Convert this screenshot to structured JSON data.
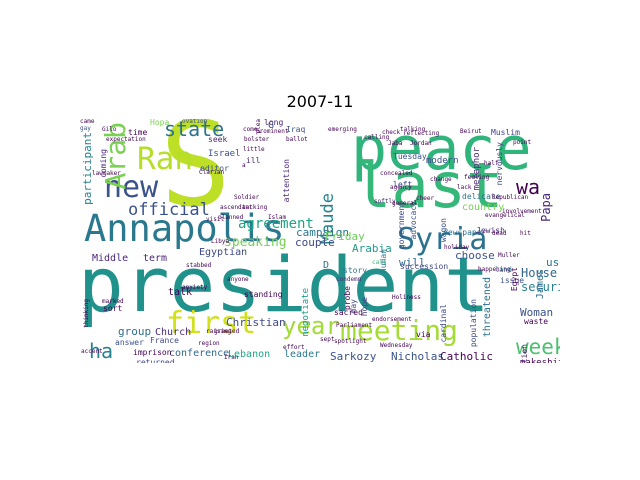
{
  "title": "2007-11",
  "words": [
    {
      "text": "president",
      "color": "#21918c"
    },
    {
      "text": "S",
      "color": "#bddf26"
    },
    {
      "text": "peace",
      "color": "#2fb47c"
    },
    {
      "text": "last",
      "color": "#35b779"
    },
    {
      "text": "Annapolis",
      "color": "#2a788e"
    },
    {
      "text": "new",
      "color": "#3b528b"
    },
    {
      "text": "Ran",
      "color": "#b5de2b"
    },
    {
      "text": "Arab",
      "color": "#7ad151"
    },
    {
      "text": "state",
      "color": "#2c728e"
    },
    {
      "text": "official",
      "color": "#3b528b"
    },
    {
      "text": "Syria",
      "color": "#2c728e"
    },
    {
      "text": "first",
      "color": "#d0e11c"
    },
    {
      "text": "year",
      "color": "#a2da37"
    },
    {
      "text": "meeting",
      "color": "#a5db36"
    },
    {
      "text": "week",
      "color": "#4ac16d"
    },
    {
      "text": "ha",
      "color": "#26828e"
    },
    {
      "text": "wa",
      "color": "#440154"
    },
    {
      "text": "Maude",
      "color": "#25858e"
    },
    {
      "text": "agreement",
      "color": "#20a486"
    },
    {
      "text": "House",
      "color": "#31688e"
    },
    {
      "text": "Papa",
      "color": "#482878"
    },
    {
      "text": "security",
      "color": "#26828e"
    },
    {
      "text": "speaking",
      "color": "#75d054"
    },
    {
      "text": "campaign",
      "color": "#2a788e"
    },
    {
      "text": "couple",
      "color": "#3e4989"
    },
    {
      "text": "Friday",
      "color": "#6ccd5a"
    },
    {
      "text": "Arabia",
      "color": "#1f9e89"
    },
    {
      "text": "will",
      "color": "#31688e"
    },
    {
      "text": "used",
      "color": "#2c728e"
    },
    {
      "text": "choose",
      "color": "#3b528b"
    },
    {
      "text": "Middle",
      "color": "#482878"
    },
    {
      "text": "term",
      "color": "#482878"
    },
    {
      "text": "group",
      "color": "#2d708e"
    },
    {
      "text": "talk",
      "color": "#440154"
    },
    {
      "text": "Egyptian",
      "color": "#3e4989"
    },
    {
      "text": "Christian",
      "color": "#3e4989"
    },
    {
      "text": "Church",
      "color": "#482878"
    },
    {
      "text": "conference",
      "color": "#31688e"
    },
    {
      "text": "Lebanon",
      "color": "#20a486"
    },
    {
      "text": "leader",
      "color": "#2a788e"
    },
    {
      "text": "Sarkozy",
      "color": "#3b528b"
    },
    {
      "text": "Nicholas",
      "color": "#3b528b"
    },
    {
      "text": "Catholic",
      "color": "#440154"
    },
    {
      "text": "Woman",
      "color": "#3b528b"
    },
    {
      "text": "makeshift",
      "color": "#440154"
    },
    {
      "text": "negotiate",
      "color": "#1f9e89"
    },
    {
      "text": "Israel",
      "color": "#3b528b"
    },
    {
      "text": "editor",
      "color": "#3b528b"
    },
    {
      "text": "seek",
      "color": "#481f70"
    },
    {
      "text": "participant",
      "color": "#26828e"
    },
    {
      "text": "metaphor",
      "color": "#482878"
    },
    {
      "text": "modern",
      "color": "#3b528b"
    },
    {
      "text": "country",
      "color": "#75d054"
    },
    {
      "text": "delicate",
      "color": "#2d708e"
    },
    {
      "text": "newspaper",
      "color": "#2c728e"
    },
    {
      "text": "Jewish",
      "color": "#482878"
    },
    {
      "text": "left",
      "color": "#414487"
    },
    {
      "text": "human",
      "color": "#2a788e"
    },
    {
      "text": "issue",
      "color": "#3b528b"
    },
    {
      "text": "succession",
      "color": "#3e4989"
    },
    {
      "text": "answer",
      "color": "#3b528b"
    },
    {
      "text": "imprison",
      "color": "#440154"
    },
    {
      "text": "returned",
      "color": "#414487"
    },
    {
      "text": "attention",
      "color": "#482878"
    },
    {
      "text": "government",
      "color": "#3e4989"
    },
    {
      "text": "advocacy",
      "color": "#3b528b"
    },
    {
      "text": "wagon",
      "color": "#3b528b"
    },
    {
      "text": "declaration",
      "color": "#481f70"
    },
    {
      "text": "James",
      "color": "#2d708e"
    },
    {
      "text": "threatened",
      "color": "#2d708e"
    },
    {
      "text": "Egypt",
      "color": "#440154"
    },
    {
      "text": "Tuesday",
      "color": "#3b528b"
    },
    {
      "text": "long",
      "color": "#481f70"
    },
    {
      "text": "ill",
      "color": "#482878"
    },
    {
      "text": "coming",
      "color": "#482878"
    },
    {
      "text": "time",
      "color": "#440154"
    },
    {
      "text": "Hopa",
      "color": "#7ad151"
    },
    {
      "text": "story",
      "color": "#2a788e"
    },
    {
      "text": "sort",
      "color": "#440154"
    },
    {
      "text": "France",
      "color": "#3e4989"
    },
    {
      "text": "cardinal",
      "color": "#3e4989"
    },
    {
      "text": "Muslim",
      "color": "#414487"
    },
    {
      "text": "nervously",
      "color": "#414487"
    },
    {
      "text": "standing",
      "color": "#440154"
    },
    {
      "text": "waste",
      "color": "#440154"
    },
    {
      "text": "population",
      "color": "#3e4989"
    },
    {
      "text": "via",
      "color": "#440154"
    },
    {
      "text": "may",
      "color": "#3e4989"
    },
    {
      "text": "Iraq",
      "color": "#3b528b"
    },
    {
      "text": "hope",
      "color": "#414487"
    },
    {
      "text": "probe",
      "color": "#440154"
    },
    {
      "text": "sacred",
      "color": "#440154"
    },
    {
      "text": "D",
      "color": "#2d708e"
    },
    {
      "text": "G",
      "color": "#3b528b"
    },
    {
      "text": "change",
      "color": "#440154"
    },
    {
      "text": "land",
      "color": "#2c728e"
    },
    {
      "text": "call",
      "color": "#35b779"
    },
    {
      "text": "thinking",
      "color": "#440154"
    },
    {
      "text": "condemn",
      "color": "#482878"
    },
    {
      "text": "Holiness",
      "color": "#440154"
    },
    {
      "text": "softly",
      "color": "#482878"
    },
    {
      "text": "marked",
      "color": "#440154"
    },
    {
      "text": "ovation",
      "color": "#3b528b"
    },
    {
      "text": "prominent",
      "color": "#440154"
    },
    {
      "text": "a",
      "color": "#440154"
    },
    {
      "text": "bolster",
      "color": "#440154"
    },
    {
      "text": "came",
      "color": "#440154"
    },
    {
      "text": "gay",
      "color": "#3b528b"
    },
    {
      "text": "plea",
      "color": "#440154"
    },
    {
      "text": "little",
      "color": "#440154"
    },
    {
      "text": "come",
      "color": "#440154"
    },
    {
      "text": "point",
      "color": "#440154"
    },
    {
      "text": "talking",
      "color": "#440154"
    },
    {
      "text": "check",
      "color": "#440154"
    },
    {
      "text": "calling",
      "color": "#440154"
    },
    {
      "text": "cheer",
      "color": "#440154"
    },
    {
      "text": "general",
      "color": "#440154"
    },
    {
      "text": "ballot",
      "color": "#440154"
    },
    {
      "text": "visit",
      "color": "#440154"
    },
    {
      "text": "raising",
      "color": "#440154"
    },
    {
      "text": "spotlight",
      "color": "#440154"
    },
    {
      "text": "feeling",
      "color": "#440154"
    },
    {
      "text": "evangelical",
      "color": "#440154"
    },
    {
      "text": "lawmaker",
      "color": "#440154"
    },
    {
      "text": "Gilo",
      "color": "#440154"
    },
    {
      "text": "expectation",
      "color": "#440154"
    },
    {
      "text": "accent",
      "color": "#440154"
    },
    {
      "text": "anxiety",
      "color": "#440154"
    },
    {
      "text": "Wednesday",
      "color": "#440154"
    },
    {
      "text": "half",
      "color": "#440154"
    },
    {
      "text": "Islam",
      "color": "#440154"
    },
    {
      "text": "lack",
      "color": "#440154"
    },
    {
      "text": "holiday",
      "color": "#440154"
    },
    {
      "text": "stabbed",
      "color": "#440154"
    },
    {
      "text": "Clarian",
      "color": "#440154"
    },
    {
      "text": "planned",
      "color": "#440154"
    },
    {
      "text": "tacking",
      "color": "#440154"
    },
    {
      "text": "agency",
      "color": "#440154"
    },
    {
      "text": "happening",
      "color": "#440154"
    },
    {
      "text": "region",
      "color": "#440154"
    },
    {
      "text": "sept",
      "color": "#440154"
    },
    {
      "text": "effort",
      "color": "#440154"
    },
    {
      "text": "Jaba",
      "color": "#440154"
    },
    {
      "text": "reflecting",
      "color": "#440154"
    },
    {
      "text": "Republican",
      "color": "#440154"
    },
    {
      "text": "anyone",
      "color": "#440154"
    },
    {
      "text": "concealed",
      "color": "#440154"
    },
    {
      "text": "greeted",
      "color": "#440154"
    },
    {
      "text": "Beirut",
      "color": "#440154"
    },
    {
      "text": "involvement",
      "color": "#440154"
    },
    {
      "text": "dead",
      "color": "#440154"
    },
    {
      "text": "hit",
      "color": "#440154"
    },
    {
      "text": "Muller",
      "color": "#440154"
    },
    {
      "text": "endorsement",
      "color": "#440154"
    },
    {
      "text": "Parliament",
      "color": "#440154"
    },
    {
      "text": "Iran",
      "color": "#440154"
    },
    {
      "text": "Libya",
      "color": "#440154"
    },
    {
      "text": "emerging",
      "color": "#440154"
    },
    {
      "text": "ascendant",
      "color": "#440154"
    },
    {
      "text": "Soldier",
      "color": "#440154"
    },
    {
      "text": "Jordan",
      "color": "#440154"
    },
    {
      "text": "faith",
      "color": "#440154"
    },
    {
      "text": "bought",
      "color": "#440154"
    },
    {
      "text": "liberal",
      "color": "#440154"
    },
    {
      "text": "Islamic",
      "color": "#440154"
    }
  ]
}
